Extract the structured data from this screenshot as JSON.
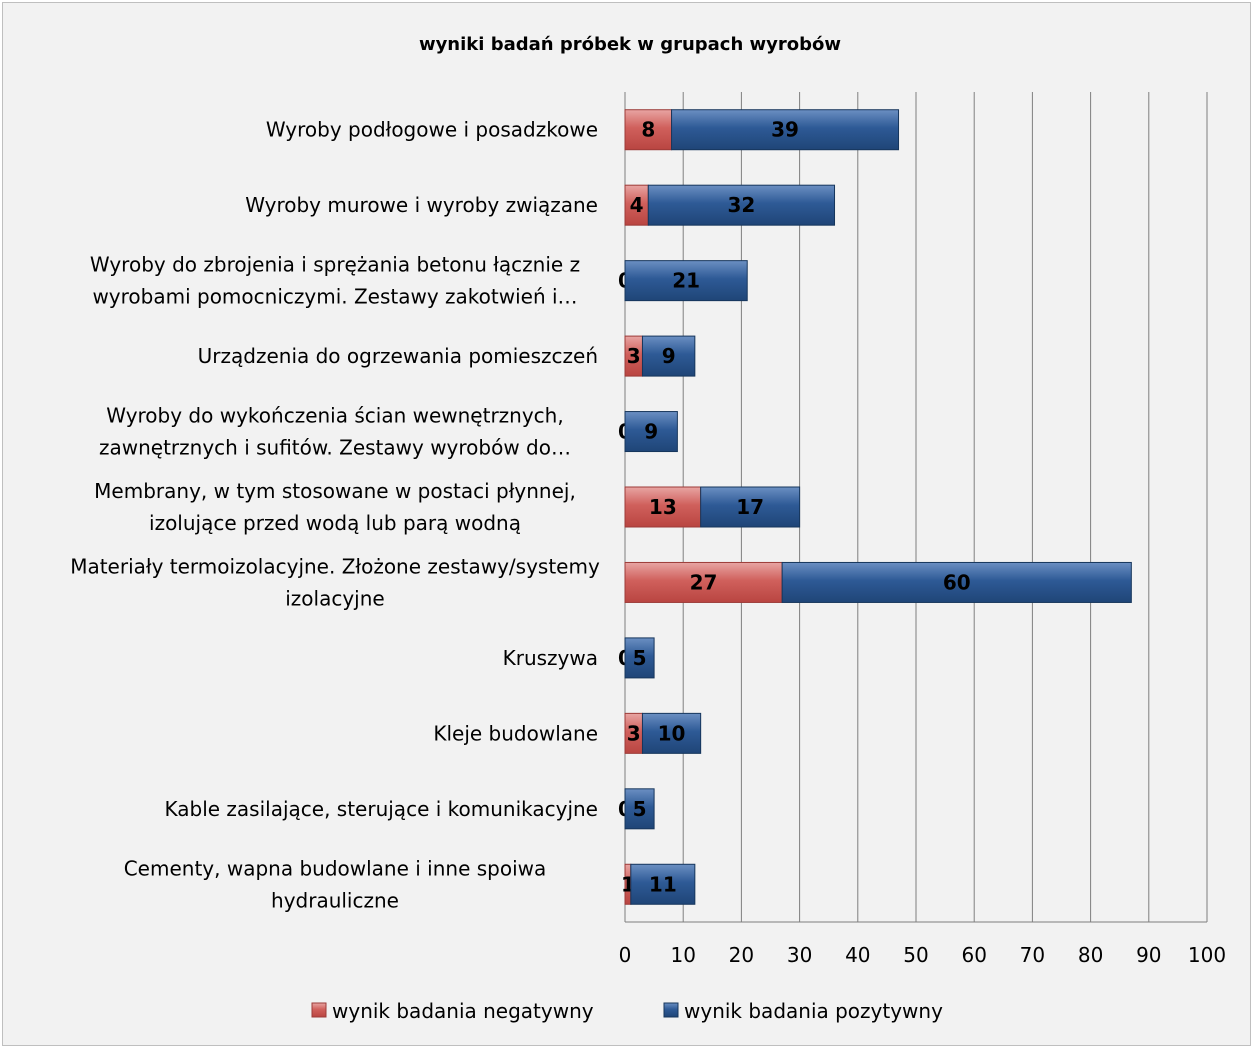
{
  "chart_data": {
    "type": "bar",
    "orientation": "horizontal",
    "stacked": true,
    "title": "wyniki badań próbek w grupach wyrobów",
    "xlabel": "",
    "ylabel": "",
    "xlim": [
      0,
      100
    ],
    "x_ticks": [
      0,
      10,
      20,
      30,
      40,
      50,
      60,
      70,
      80,
      90,
      100
    ],
    "grid": "vertical",
    "legend_position": "bottom",
    "categories": [
      [
        "Wyroby podłogowe i posadzkowe"
      ],
      [
        "Wyroby murowe i wyroby związane"
      ],
      [
        "Wyroby do zbrojenia i sprężania betonu łącznie z",
        "wyrobami pomocniczymi. Zestawy zakotwień i…"
      ],
      [
        "Urządzenia do ogrzewania pomieszczeń"
      ],
      [
        "Wyroby do wykończenia ścian wewnętrznych,",
        "zawnętrznych i sufitów. Zestawy wyrobów do…"
      ],
      [
        "Membrany, w tym stosowane w postaci płynnej,",
        "izolujące przed wodą lub parą wodną"
      ],
      [
        "Materiały termoizolacyjne. Złożone zestawy/systemy",
        "izolacyjne"
      ],
      [
        "Kruszywa"
      ],
      [
        "Kleje budowlane"
      ],
      [
        "Kable zasilające, sterujące i komunikacyjne"
      ],
      [
        "Cementy, wapna budowlane i inne spoiwa",
        "hydrauliczne"
      ]
    ],
    "series": [
      {
        "name": "wynik badania negatywny",
        "color": "#c0504d",
        "values": [
          8,
          4,
          0,
          3,
          0,
          13,
          27,
          0,
          3,
          0,
          1
        ]
      },
      {
        "name": "wynik badania pozytywny",
        "color": "#1f497d",
        "values": [
          39,
          32,
          21,
          9,
          9,
          17,
          60,
          5,
          10,
          5,
          11
        ]
      }
    ]
  }
}
